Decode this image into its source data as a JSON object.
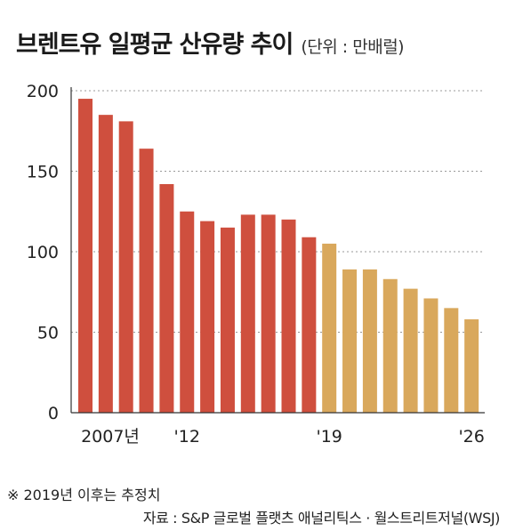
{
  "title": "브렌트유 일평균 산유량 추이",
  "unit": "(단위 : 만배럴)",
  "footnote": "※ 2019년 이후는 추정치",
  "source": "자료 : S&P 글로벌 플랫츠 애널리틱스 · 월스트리트저널(WSJ)",
  "colors": {
    "actual": "#cf4f3e",
    "estimate": "#d9a85c",
    "grid": "#999999",
    "axis": "#333333"
  },
  "chart_data": {
    "type": "bar",
    "ylim": [
      0,
      200
    ],
    "yticks": [
      0,
      50,
      100,
      150,
      200
    ],
    "grid": "dotted horizontal",
    "categories": [
      "2007",
      "2008",
      "2009",
      "2010",
      "2011",
      "2012",
      "2013",
      "2014",
      "2015",
      "2016",
      "2017",
      "2018",
      "2019",
      "2020",
      "2021",
      "2022",
      "2023",
      "2024",
      "2025",
      "2026"
    ],
    "xtick_labels": [
      {
        "category": "2007",
        "label": "2007년"
      },
      {
        "category": "2012",
        "label": "'12"
      },
      {
        "category": "2019",
        "label": "'19"
      },
      {
        "category": "2026",
        "label": "'26"
      }
    ],
    "values": [
      195,
      185,
      181,
      164,
      142,
      125,
      119,
      115,
      123,
      123,
      120,
      109,
      105,
      89,
      89,
      83,
      77,
      71,
      65,
      58
    ],
    "estimate_from": "2019"
  }
}
